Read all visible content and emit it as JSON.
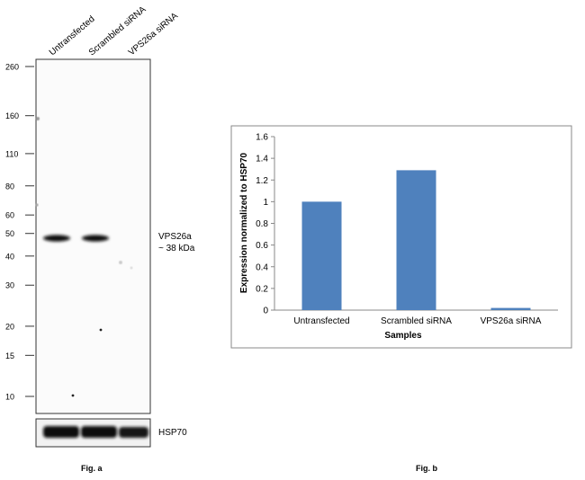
{
  "blot": {
    "lane_labels": [
      "Untransfected",
      "Scrambled siRNA",
      "VPS26a siRNA"
    ],
    "markers": [
      {
        "label": "260",
        "kda": 260
      },
      {
        "label": "160",
        "kda": 160
      },
      {
        "label": "110",
        "kda": 110
      },
      {
        "label": "80",
        "kda": 80
      },
      {
        "label": "60",
        "kda": 60
      },
      {
        "label": "50",
        "kda": 50
      },
      {
        "label": "40",
        "kda": 40
      },
      {
        "label": "30",
        "kda": 30
      },
      {
        "label": "20",
        "kda": 20
      },
      {
        "label": "15",
        "kda": 15
      },
      {
        "label": "10",
        "kda": 10
      }
    ],
    "target_band_label": "VPS26a",
    "target_band_size": "~ 38 kDa",
    "target_band_kda": 38,
    "target_band_presence": [
      1,
      1,
      0
    ],
    "control_label": "HSP70",
    "control_band_presence": [
      1,
      1,
      1
    ],
    "caption": "Fig. a"
  },
  "chart_data": {
    "type": "bar",
    "title": "",
    "categories": [
      "Untransfected",
      "Scrambled siRNA",
      "VPS26a siRNA"
    ],
    "values": [
      1.0,
      1.29,
      0.02
    ],
    "xlabel": "Samples",
    "ylabel": "Expression normalized to HSP70",
    "ylim": [
      0,
      1.6
    ],
    "yticks": [
      "0",
      "0.2",
      "0.4",
      "0.6",
      "0.8",
      "1",
      "1.2",
      "1.4",
      "1.6"
    ],
    "grid": false,
    "bar_color": "#4f81bd",
    "caption": "Fig. b"
  }
}
